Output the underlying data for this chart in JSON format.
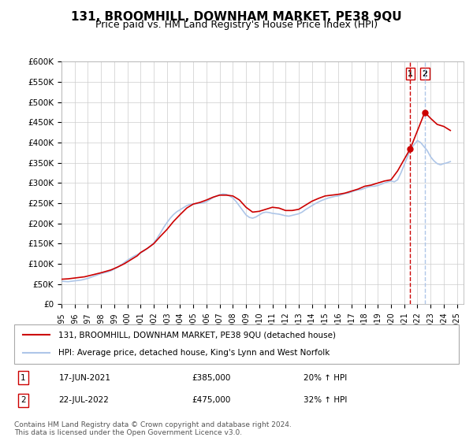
{
  "title": "131, BROOMHILL, DOWNHAM MARKET, PE38 9QU",
  "subtitle": "Price paid vs. HM Land Registry's House Price Index (HPI)",
  "title_fontsize": 11,
  "subtitle_fontsize": 9,
  "ylabel_ticks": [
    "£0",
    "£50K",
    "£100K",
    "£150K",
    "£200K",
    "£250K",
    "£300K",
    "£350K",
    "£400K",
    "£450K",
    "£500K",
    "£550K",
    "£600K"
  ],
  "ytick_values": [
    0,
    50000,
    100000,
    150000,
    200000,
    250000,
    300000,
    350000,
    400000,
    450000,
    500000,
    550000,
    600000
  ],
  "ylim": [
    0,
    600000
  ],
  "xlim_start": 1995.0,
  "xlim_end": 2025.5,
  "background_color": "#ffffff",
  "grid_color": "#cccccc",
  "hpi_color": "#aec6e8",
  "price_color": "#cc0000",
  "transaction1": {
    "date": "17-JUN-2021",
    "price": 385000,
    "hpi_pct": "20%",
    "label": "1"
  },
  "transaction2": {
    "date": "22-JUL-2022",
    "price": 475000,
    "hpi_pct": "32%",
    "label": "2"
  },
  "t1_x": 2021.46,
  "t2_x": 2022.56,
  "legend_line1": "131, BROOMHILL, DOWNHAM MARKET, PE38 9QU (detached house)",
  "legend_line2": "HPI: Average price, detached house, King's Lynn and West Norfolk",
  "footer": "Contains HM Land Registry data © Crown copyright and database right 2024.\nThis data is licensed under the Open Government Licence v3.0.",
  "hpi_data_x": [
    1995.0,
    1995.25,
    1995.5,
    1995.75,
    1996.0,
    1996.25,
    1996.5,
    1996.75,
    1997.0,
    1997.25,
    1997.5,
    1997.75,
    1998.0,
    1998.25,
    1998.5,
    1998.75,
    1999.0,
    1999.25,
    1999.5,
    1999.75,
    2000.0,
    2000.25,
    2000.5,
    2000.75,
    2001.0,
    2001.25,
    2001.5,
    2001.75,
    2002.0,
    2002.25,
    2002.5,
    2002.75,
    2003.0,
    2003.25,
    2003.5,
    2003.75,
    2004.0,
    2004.25,
    2004.5,
    2004.75,
    2005.0,
    2005.25,
    2005.5,
    2005.75,
    2006.0,
    2006.25,
    2006.5,
    2006.75,
    2007.0,
    2007.25,
    2007.5,
    2007.75,
    2008.0,
    2008.25,
    2008.5,
    2008.75,
    2009.0,
    2009.25,
    2009.5,
    2009.75,
    2010.0,
    2010.25,
    2010.5,
    2010.75,
    2011.0,
    2011.25,
    2011.5,
    2011.75,
    2012.0,
    2012.25,
    2012.5,
    2012.75,
    2013.0,
    2013.25,
    2013.5,
    2013.75,
    2014.0,
    2014.25,
    2014.5,
    2014.75,
    2015.0,
    2015.25,
    2015.5,
    2015.75,
    2016.0,
    2016.25,
    2016.5,
    2016.75,
    2017.0,
    2017.25,
    2017.5,
    2017.75,
    2018.0,
    2018.25,
    2018.5,
    2018.75,
    2019.0,
    2019.25,
    2019.5,
    2019.75,
    2020.0,
    2020.25,
    2020.5,
    2020.75,
    2021.0,
    2021.25,
    2021.5,
    2021.75,
    2022.0,
    2022.25,
    2022.5,
    2022.75,
    2023.0,
    2023.25,
    2023.5,
    2023.75,
    2024.0,
    2024.25,
    2024.5
  ],
  "hpi_data_y": [
    57000,
    56500,
    56000,
    57000,
    58000,
    59000,
    60000,
    62000,
    64000,
    67000,
    70000,
    73000,
    76000,
    78000,
    80000,
    83000,
    87000,
    92000,
    97000,
    103000,
    109000,
    114000,
    119000,
    123000,
    127000,
    132000,
    138000,
    144000,
    152000,
    163000,
    176000,
    190000,
    202000,
    213000,
    222000,
    229000,
    234000,
    239000,
    244000,
    247000,
    248000,
    249000,
    250000,
    251000,
    254000,
    259000,
    264000,
    268000,
    271000,
    273000,
    272000,
    268000,
    263000,
    254000,
    243000,
    232000,
    221000,
    215000,
    213000,
    216000,
    221000,
    226000,
    228000,
    227000,
    225000,
    224000,
    223000,
    221000,
    219000,
    218000,
    220000,
    222000,
    224000,
    228000,
    234000,
    239000,
    244000,
    249000,
    253000,
    257000,
    260000,
    263000,
    265000,
    267000,
    268000,
    271000,
    274000,
    275000,
    278000,
    281000,
    283000,
    284000,
    287000,
    290000,
    292000,
    292000,
    294000,
    297000,
    300000,
    303000,
    305000,
    303000,
    308000,
    325000,
    345000,
    365000,
    385000,
    395000,
    405000,
    400000,
    390000,
    380000,
    365000,
    355000,
    348000,
    345000,
    348000,
    350000,
    353000
  ],
  "price_data_x": [
    1995.0,
    1995.5,
    1996.0,
    1996.75,
    1997.5,
    1998.0,
    1998.75,
    1999.25,
    1999.75,
    2000.25,
    2000.75,
    2001.0,
    2001.5,
    2002.0,
    2002.5,
    2003.0,
    2003.5,
    2004.0,
    2004.5,
    2005.0,
    2005.5,
    2006.0,
    2006.5,
    2007.0,
    2007.5,
    2008.0,
    2008.5,
    2009.0,
    2009.5,
    2010.0,
    2010.5,
    2011.0,
    2011.5,
    2012.0,
    2012.5,
    2013.0,
    2013.5,
    2014.0,
    2014.5,
    2015.0,
    2015.5,
    2016.0,
    2016.5,
    2017.0,
    2017.5,
    2018.0,
    2018.5,
    2019.0,
    2019.5,
    2020.0,
    2020.5,
    2021.46,
    2022.56,
    2023.0,
    2023.5,
    2024.0,
    2024.5
  ],
  "price_data_y": [
    62000,
    63000,
    65000,
    68000,
    74000,
    78000,
    85000,
    92000,
    100000,
    110000,
    120000,
    128000,
    138000,
    150000,
    168000,
    185000,
    205000,
    222000,
    238000,
    248000,
    252000,
    258000,
    265000,
    270000,
    270000,
    268000,
    258000,
    240000,
    228000,
    230000,
    235000,
    240000,
    238000,
    232000,
    232000,
    235000,
    245000,
    255000,
    262000,
    268000,
    270000,
    272000,
    275000,
    280000,
    285000,
    292000,
    295000,
    300000,
    305000,
    308000,
    330000,
    385000,
    475000,
    460000,
    445000,
    440000,
    430000
  ]
}
